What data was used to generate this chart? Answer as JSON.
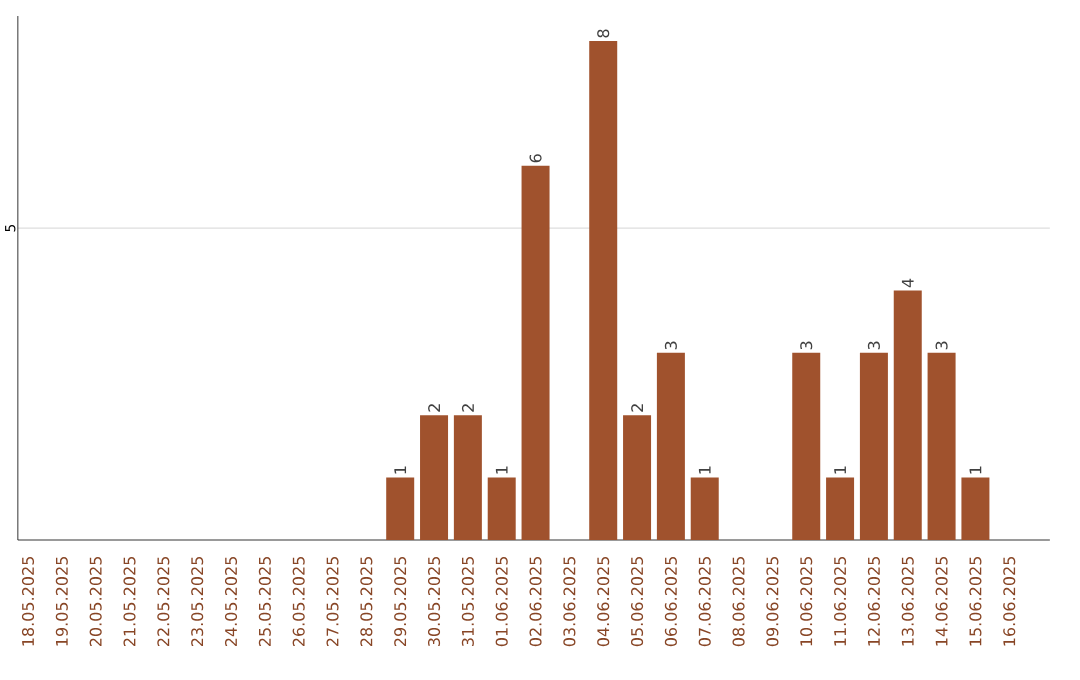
{
  "chart_data": {
    "type": "bar",
    "categories": [
      "18.05.2025",
      "19.05.2025",
      "20.05.2025",
      "21.05.2025",
      "22.05.2025",
      "23.05.2025",
      "24.05.2025",
      "25.05.2025",
      "26.05.2025",
      "27.05.2025",
      "28.05.2025",
      "29.05.2025",
      "30.05.2025",
      "31.05.2025",
      "01.06.2025",
      "02.06.2025",
      "03.06.2025",
      "04.06.2025",
      "05.06.2025",
      "06.06.2025",
      "07.06.2025",
      "08.06.2025",
      "09.06.2025",
      "10.06.2025",
      "11.06.2025",
      "12.06.2025",
      "13.06.2025",
      "14.06.2025",
      "15.06.2025",
      "16.06.2025"
    ],
    "values": [
      0,
      0,
      0,
      0,
      0,
      0,
      0,
      0,
      0,
      0,
      0,
      1,
      2,
      2,
      1,
      6,
      0,
      8,
      2,
      3,
      1,
      0,
      0,
      3,
      1,
      3,
      4,
      3,
      1,
      0
    ],
    "value_labels": [
      null,
      null,
      null,
      null,
      null,
      null,
      null,
      null,
      null,
      null,
      null,
      "1",
      "2",
      "2",
      "1",
      "6",
      null,
      "8",
      "2",
      "3",
      "1",
      null,
      null,
      "3",
      "1",
      "3",
      "4",
      "3",
      "1",
      null
    ],
    "color": "#a0522d",
    "ylim": [
      0,
      8.4
    ],
    "yticks": [
      5
    ],
    "grid": "y"
  }
}
